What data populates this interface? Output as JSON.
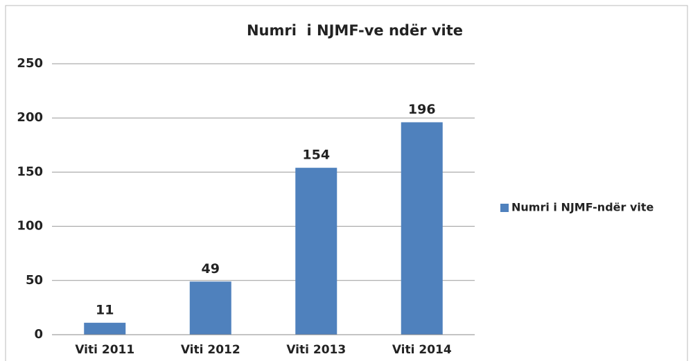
{
  "chart_data": {
    "type": "bar",
    "title": "Numri  i NJMF-ve ndër vite",
    "categories": [
      "Viti 2011",
      "Viti 2012",
      "Viti 2013",
      "Viti 2014"
    ],
    "series": [
      {
        "name": "Numri i NJMF-ndër vite",
        "color": "#4f81bd",
        "values": [
          11,
          49,
          154,
          196
        ]
      }
    ],
    "ylim": [
      0,
      250
    ],
    "yticks": [
      0,
      50,
      100,
      150,
      200,
      250
    ],
    "grid": true,
    "legend": "right"
  }
}
